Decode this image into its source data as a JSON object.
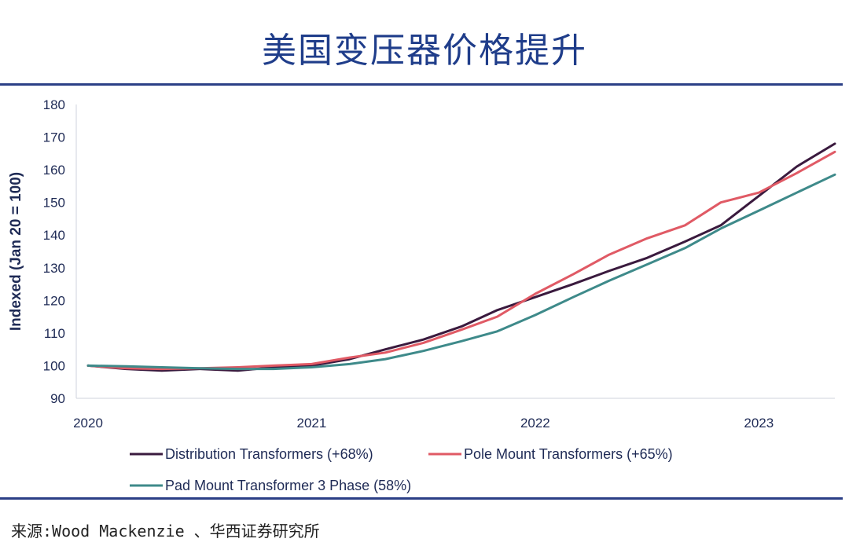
{
  "page": {
    "title": "美国变压器价格提升",
    "source": "来源:Wood Mackenzie 、华西证券研究所"
  },
  "chart_data": {
    "type": "line",
    "title": "美国变压器价格提升",
    "xlabel": "",
    "ylabel": "Indexed (Jan 20 = 100)",
    "ylim": [
      90,
      180
    ],
    "yticks": [
      90,
      100,
      110,
      120,
      130,
      140,
      150,
      160,
      170,
      180
    ],
    "xlim": [
      2020,
      2023.34
    ],
    "xticks": [
      2020,
      2021,
      2022,
      2023
    ],
    "xtick_labels": [
      "2020",
      "2021",
      "2022",
      "2023"
    ],
    "x": [
      2020.0,
      2020.17,
      2020.33,
      2020.5,
      2020.67,
      2020.83,
      2021.0,
      2021.17,
      2021.33,
      2021.5,
      2021.67,
      2021.83,
      2022.0,
      2022.17,
      2022.33,
      2022.5,
      2022.67,
      2022.83,
      2023.0,
      2023.17,
      2023.34
    ],
    "series": [
      {
        "name": "Distribution Transformers (+68%)",
        "color": "#3a1a3e",
        "values": [
          100,
          99,
          98.5,
          99,
          98.5,
          99.5,
          100,
          102,
          105,
          108,
          112,
          117,
          121,
          125,
          129,
          133,
          138,
          143,
          152,
          161,
          168
        ]
      },
      {
        "name": "Pole Mount Transformers (+65%)",
        "color": "#e05a65",
        "values": [
          100,
          99.2,
          99,
          99.2,
          99.5,
          100,
          100.5,
          102.5,
          104,
          107,
          111,
          115,
          122,
          128,
          134,
          139,
          143,
          150,
          153,
          159,
          165.5
        ]
      },
      {
        "name": "Pad Mount Transformer 3 Phase (58%)",
        "color": "#3e8a8a",
        "values": [
          100,
          99.8,
          99.5,
          99.2,
          99,
          99,
          99.5,
          100.5,
          102,
          104.5,
          107.5,
          110.5,
          115.5,
          121,
          126,
          131,
          136,
          142,
          147.5,
          153,
          158.5
        ]
      }
    ],
    "legend": "bottom"
  }
}
